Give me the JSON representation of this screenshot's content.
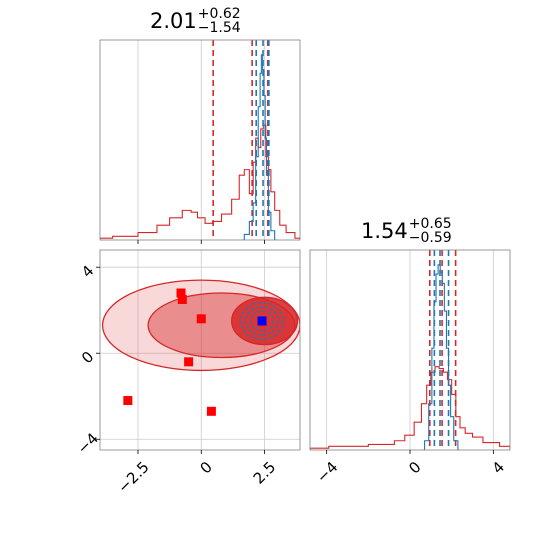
{
  "colors": {
    "red": "#d62728",
    "blue": "#1f77b4",
    "marker_red": "#ff0000",
    "marker_blue": "#0000ff",
    "grid": "#cccccc",
    "spine": "#808080"
  },
  "chart_data": [
    {
      "type": "histogram",
      "panel": "marginal-param-1",
      "title": {
        "value": "2.01",
        "plus": "+0.62",
        "minus": "−1.54"
      },
      "xlim": [
        -4.0,
        3.9
      ],
      "xticks": [
        -2.5,
        0.0,
        2.5
      ],
      "grid": true,
      "series": [
        {
          "color": "#d62728",
          "x": [
            -4.0,
            -3.0,
            -2.0,
            -1.5,
            -1.0,
            -0.5,
            -0.3,
            0.0,
            0.3,
            0.6,
            1.0,
            1.4,
            1.6,
            1.8,
            2.0,
            2.1,
            2.2,
            2.3,
            2.4,
            2.5,
            2.6,
            2.7,
            2.8,
            3.0,
            3.2,
            3.5,
            3.9
          ],
          "density": [
            0.01,
            0.02,
            0.04,
            0.08,
            0.12,
            0.16,
            0.15,
            0.12,
            0.09,
            0.1,
            0.14,
            0.22,
            0.35,
            0.38,
            0.25,
            0.42,
            0.55,
            0.5,
            0.6,
            0.62,
            0.45,
            0.38,
            0.26,
            0.16,
            0.08,
            0.04,
            0.01
          ],
          "quantile_lines": [
            0.47,
            2.01,
            2.63
          ]
        },
        {
          "color": "#1f77b4",
          "x": [
            1.6,
            1.8,
            2.0,
            2.1,
            2.2,
            2.3,
            2.35,
            2.4,
            2.45,
            2.5,
            2.55,
            2.6,
            2.7,
            2.8,
            3.0
          ],
          "density": [
            0.0,
            0.03,
            0.1,
            0.2,
            0.45,
            0.72,
            0.9,
            1.0,
            0.92,
            0.78,
            0.55,
            0.35,
            0.15,
            0.05,
            0.0
          ],
          "quantile_lines": [
            2.17,
            2.44,
            2.67
          ]
        }
      ]
    },
    {
      "type": "histogram",
      "panel": "marginal-param-2",
      "title": {
        "value": "1.54",
        "plus": "+0.65",
        "minus": "−0.59"
      },
      "xlim": [
        -4.8,
        4.8
      ],
      "xticks": [
        -4,
        0,
        4
      ],
      "grid": true,
      "series": [
        {
          "color": "#d62728",
          "x": [
            -4.8,
            -3.0,
            -1.0,
            -0.5,
            0.0,
            0.4,
            0.7,
            0.9,
            1.1,
            1.3,
            1.5,
            1.7,
            1.9,
            2.1,
            2.3,
            2.5,
            2.8,
            3.2,
            3.8,
            4.8
          ],
          "density": [
            0.01,
            0.02,
            0.03,
            0.05,
            0.08,
            0.15,
            0.25,
            0.35,
            0.42,
            0.45,
            0.44,
            0.42,
            0.38,
            0.3,
            0.18,
            0.12,
            0.09,
            0.07,
            0.04,
            0.02
          ],
          "quantile_lines": [
            0.95,
            1.54,
            2.19
          ]
        },
        {
          "color": "#1f77b4",
          "x": [
            0.6,
            0.8,
            1.0,
            1.1,
            1.2,
            1.3,
            1.4,
            1.5,
            1.6,
            1.7,
            1.8,
            1.9,
            2.0,
            2.2,
            2.4
          ],
          "density": [
            0.0,
            0.05,
            0.25,
            0.55,
            0.8,
            0.95,
            1.0,
            0.96,
            0.9,
            0.75,
            0.55,
            0.35,
            0.18,
            0.05,
            0.0
          ],
          "quantile_lines": [
            1.17,
            1.44,
            1.85
          ]
        }
      ]
    },
    {
      "type": "contour",
      "panel": "joint-param-1-param-2",
      "xlim": [
        -4.0,
        3.9
      ],
      "ylim": [
        -4.5,
        4.8
      ],
      "xticks": [
        -2.5,
        0.0,
        2.5
      ],
      "yticks": [
        -4,
        0,
        4
      ],
      "grid": true,
      "red_contours": [
        {
          "level": 0.9,
          "cx": 0.0,
          "cy": 1.3,
          "rx": 3.9,
          "ry": 2.1
        },
        {
          "level": 0.68,
          "cx": 0.8,
          "cy": 1.3,
          "rx": 2.9,
          "ry": 1.5
        },
        {
          "level": 0.39,
          "cx": 2.5,
          "cy": 1.5,
          "rx": 1.3,
          "ry": 1.1
        }
      ],
      "blue_contours": [
        {
          "cx": 2.4,
          "cy": 1.5,
          "rx": 0.45,
          "ry": 0.45
        },
        {
          "cx": 2.4,
          "cy": 1.5,
          "rx": 0.65,
          "ry": 0.65
        },
        {
          "cx": 2.4,
          "cy": 1.5,
          "rx": 0.85,
          "ry": 0.85
        }
      ],
      "red_markers": [
        {
          "x": -0.8,
          "y": 2.8
        },
        {
          "x": -0.75,
          "y": 2.5
        },
        {
          "x": -0.5,
          "y": -0.4
        },
        {
          "x": 0.4,
          "y": -2.7
        },
        {
          "x": -2.9,
          "y": -2.2
        },
        {
          "x": 0.0,
          "y": 1.6
        }
      ],
      "blue_markers": [
        {
          "x": 2.4,
          "y": 1.5
        }
      ]
    }
  ]
}
